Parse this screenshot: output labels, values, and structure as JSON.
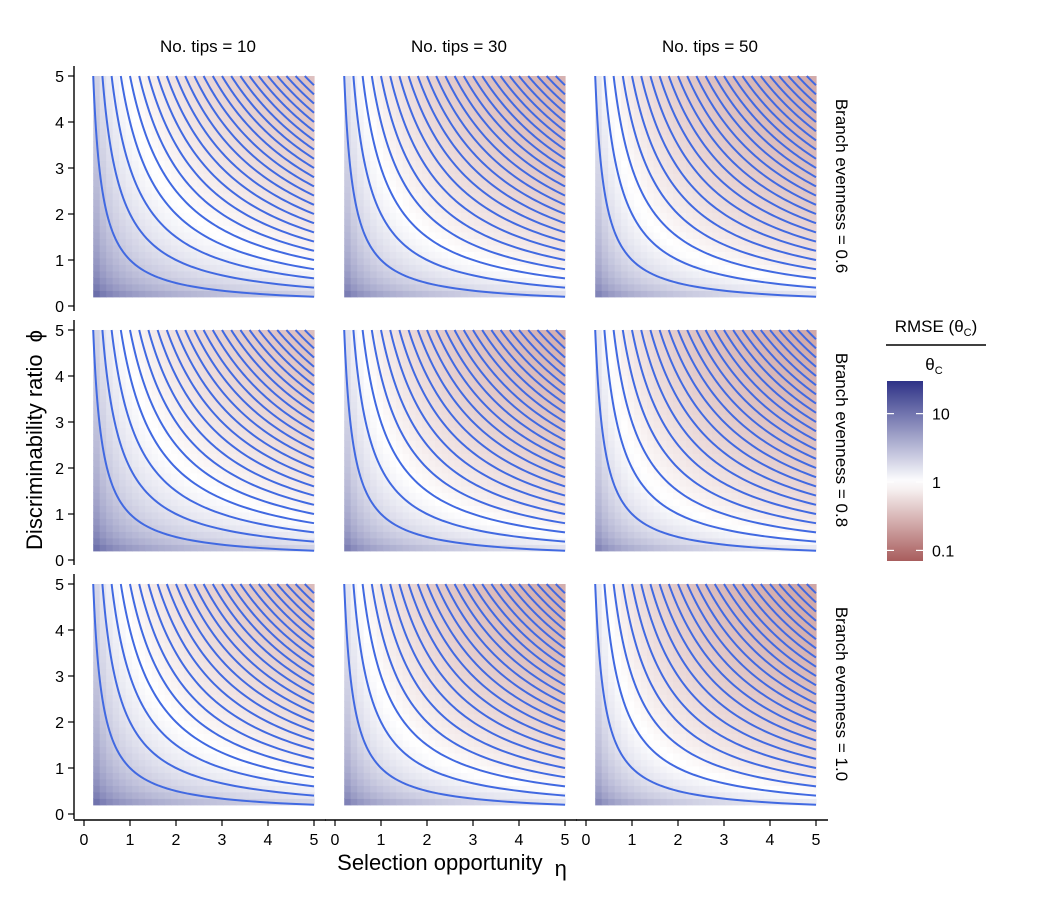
{
  "chart_data": {
    "type": "heatmap",
    "description_note": "3x3 facet grid of filled heatmaps with overlaid contour curves (contours of eta*phi)",
    "facet_columns": [
      "No. tips = 10",
      "No. tips = 30",
      "No. tips = 50"
    ],
    "facet_rows": [
      "Branch evenness = 0.6",
      "Branch evenness = 0.8",
      "Branch evenness = 1.0"
    ],
    "n_tips": [
      10,
      30,
      50
    ],
    "branch_evenness": [
      0.6,
      0.8,
      1.0
    ],
    "x": {
      "label": "Selection opportunity",
      "symbol": "η",
      "range": [
        0.2,
        5
      ],
      "axis_limits": [
        0,
        5
      ],
      "ticks": [
        0,
        1,
        2,
        3,
        4,
        5
      ],
      "tick_labels": [
        "0",
        "1",
        "2",
        "3",
        "4",
        "5"
      ]
    },
    "y": {
      "label": "Discriminability ratio",
      "symbol": "ϕ",
      "range": [
        0.2,
        5
      ],
      "axis_limits": [
        0,
        5
      ],
      "ticks": [
        0,
        1,
        2,
        3,
        4,
        5
      ],
      "tick_labels": [
        "0",
        "1",
        "2",
        "3",
        "4",
        "5"
      ]
    },
    "contour_levels": [
      1,
      2,
      3,
      4,
      5,
      6,
      7,
      8,
      9,
      10,
      11,
      12,
      13,
      14,
      15,
      16,
      17,
      18,
      19,
      20,
      21,
      22,
      23,
      24,
      25
    ],
    "contour_color": "#4169E1",
    "fill_value": "RMSE(θC)/θC",
    "fill_scale": "log10",
    "colorbar": {
      "title_numerator": "RMSE (θ",
      "title_numerator_sub": "C",
      "title_numerator_close": ")",
      "title_denominator": "θ",
      "title_denominator_sub": "C",
      "tick_values": [
        0.1,
        1,
        10
      ],
      "tick_labels": [
        "0.1",
        "1",
        "10"
      ],
      "limits": [
        0.07,
        30
      ],
      "low_color": "#A85D5D",
      "mid_color": "#FFFFFF",
      "high_color": "#2E3287",
      "position": "right"
    }
  }
}
